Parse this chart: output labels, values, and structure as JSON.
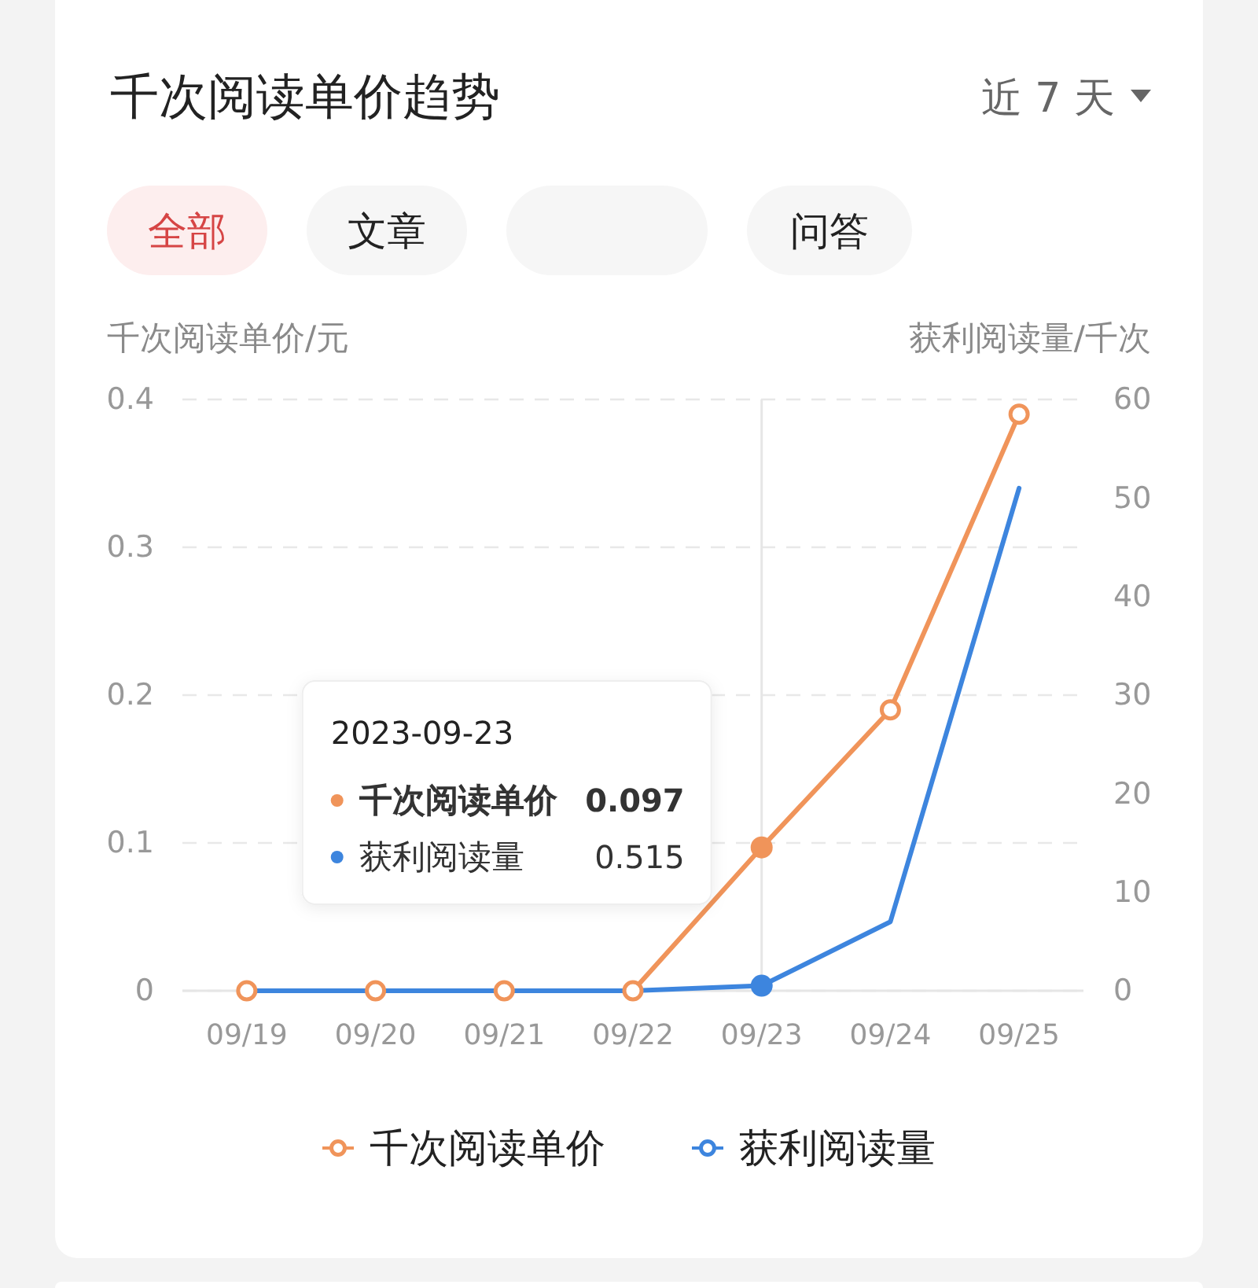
{
  "chart_data": {
    "type": "line",
    "title": "千次阅读单价趋势",
    "ylabel": "千次阅读单价/元",
    "y2label": "获利阅读量/千次",
    "categories": [
      "09/19",
      "09/20",
      "09/21",
      "09/22",
      "09/23",
      "09/24",
      "09/25"
    ],
    "series": [
      {
        "name": "千次阅读单价",
        "color": "#f0945a",
        "marker": "circle",
        "values": [
          0,
          0,
          0,
          0,
          0.097,
          0.19,
          0.39
        ]
      },
      {
        "name": "获利阅读量",
        "color": "#3d85de",
        "marker": "none",
        "axis": "y2",
        "values": [
          0,
          0,
          0,
          0,
          0.515,
          7,
          51
        ]
      }
    ],
    "ylim": [
      0,
      0.4
    ],
    "yticks": [
      0,
      0.1,
      0.2,
      0.3,
      0.4
    ],
    "y2lim": [
      0,
      60
    ],
    "y2ticks": [
      0,
      10,
      20,
      30,
      40,
      50,
      60
    ],
    "grid": "y",
    "legend": "bottom",
    "line_style": "solid",
    "ref_lines": [
      {
        "axis": "x",
        "value": "09/23",
        "color": "#e6e6e6"
      }
    ],
    "annotations": [
      "近 7 天",
      "全部",
      "文章",
      "问答",
      "2023-09-23",
      "0.097",
      "0.515"
    ]
  }
}
